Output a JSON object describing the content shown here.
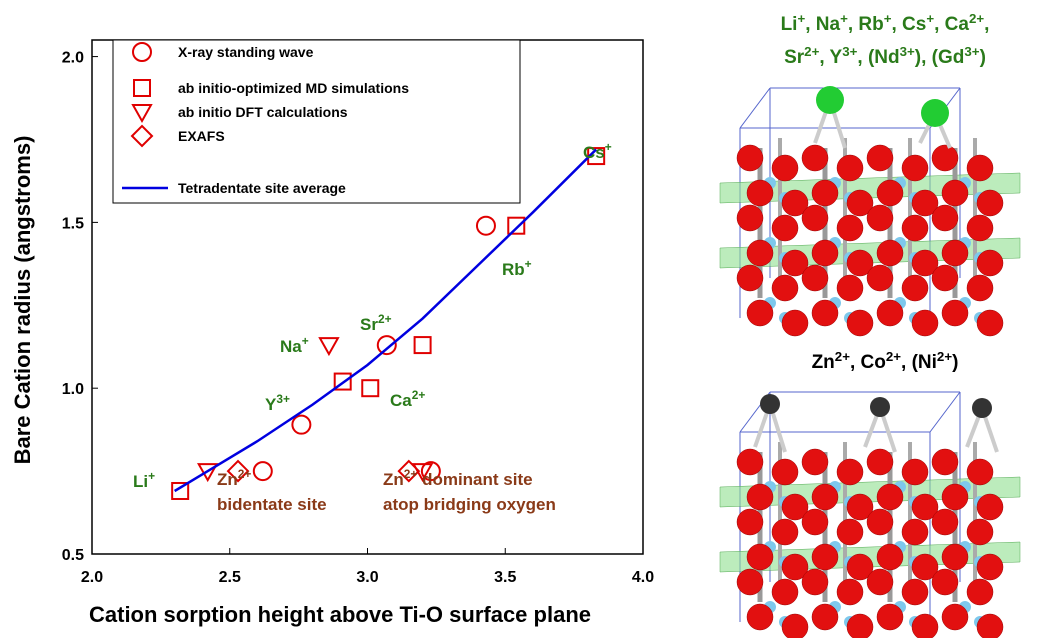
{
  "chart_data": {
    "type": "scatter",
    "xlabel": "Cation sorption height above Ti-O surface plane",
    "ylabel": "Bare Cation radius (angstroms)",
    "xlim": [
      2.0,
      4.0
    ],
    "xticks": [
      {
        "value": 2.0,
        "label": "2.0"
      },
      {
        "value": 2.5,
        "label": "2.5"
      },
      {
        "value": 3.0,
        "label": "3.0"
      },
      {
        "value": 3.5,
        "label": "3.5"
      },
      {
        "value": 4.0,
        "label": "4.0"
      }
    ],
    "ylim": [
      0.5,
      2.05
    ],
    "yticks": [
      {
        "value": 0.5,
        "label": "0.5"
      },
      {
        "value": 1.0,
        "label": "1.0"
      },
      {
        "value": 1.5,
        "label": "1.5"
      },
      {
        "value": 2.0,
        "label": "2.0"
      }
    ],
    "series": [
      {
        "name": "X-ray standing wave",
        "marker": "circle",
        "color": "#e00000",
        "x": [
          2.62,
          2.76,
          3.07,
          3.43,
          3.23
        ],
        "values": [
          0.75,
          0.89,
          1.13,
          1.49,
          0.75
        ]
      },
      {
        "name": "ab initio-optimized MD simulations",
        "marker": "square",
        "color": "#e00000",
        "x": [
          2.32,
          2.91,
          3.01,
          3.2,
          3.54,
          3.83
        ],
        "values": [
          0.69,
          1.02,
          1.0,
          1.13,
          1.49,
          1.7
        ]
      },
      {
        "name": "ab initio DFT calculations",
        "marker": "triangle-down",
        "color": "#e00000",
        "x": [
          2.42,
          2.86,
          3.2
        ],
        "values": [
          0.75,
          1.13,
          0.75
        ]
      },
      {
        "name": "EXAFS",
        "marker": "diamond",
        "color": "#e00000",
        "x": [
          2.53,
          3.15
        ],
        "values": [
          0.75,
          0.75
        ]
      },
      {
        "name": "Tetradentate site average",
        "marker": "line",
        "color": "#0000e0",
        "x": [
          2.3,
          2.4,
          2.6,
          2.8,
          3.0,
          3.2,
          3.4,
          3.6,
          3.83
        ],
        "values": [
          0.69,
          0.74,
          0.84,
          0.95,
          1.07,
          1.21,
          1.37,
          1.53,
          1.72
        ]
      }
    ],
    "annotations": [
      {
        "text": "Cs",
        "sup": "+"
      },
      {
        "text": "Rb",
        "sup": "+"
      },
      {
        "text": "Sr",
        "sup": "2+"
      },
      {
        "text": "Na",
        "sup": "+"
      },
      {
        "text": "Ca",
        "sup": "2+"
      },
      {
        "text": "Y",
        "sup": "3+"
      },
      {
        "text": "Li",
        "sup": "+"
      },
      {
        "text": "Zn",
        "sup": "2+",
        "line2": "bidentate site"
      },
      {
        "text": "Zn",
        "sup": "2+",
        "after": " dominant site",
        "line2": "atop bridging oxygen"
      }
    ]
  },
  "structures": [
    {
      "lines": [
        [
          {
            "base": "Li",
            "sup": "+",
            "after": ","
          },
          {
            "base": " Na",
            "sup": "+",
            "after": ","
          },
          {
            "base": " Rb",
            "sup": "+",
            "after": ","
          },
          {
            "base": " Cs",
            "sup": "+",
            "after": ","
          },
          {
            "base": " Ca",
            "sup": "2+",
            "after": ","
          }
        ],
        [
          {
            "base": "Sr",
            "sup": "2+",
            "after": ","
          },
          {
            "base": " Y",
            "sup": "3+",
            "after": ","
          },
          {
            "base": " (Nd",
            "sup": "3+",
            "after": "),"
          },
          {
            "base": " (Gd",
            "sup": "3+",
            "after": ")"
          }
        ]
      ]
    },
    {
      "lines": [
        [
          {
            "base": "Zn",
            "sup": "2+",
            "after": ","
          },
          {
            "base": " Co",
            "sup": "2+",
            "after": ","
          },
          {
            "base": " (Ni",
            "sup": "2+",
            "after": ")"
          }
        ]
      ]
    }
  ]
}
